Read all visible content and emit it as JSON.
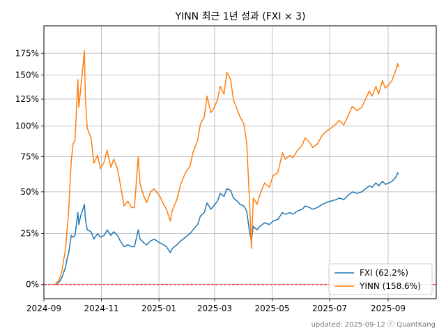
{
  "chart_data": {
    "type": "line",
    "title": "YINN 최근 1년 성과 (FXI × 3)",
    "xlabel": "",
    "ylabel": "",
    "footer": "updated: 2025-09-12 ⓒ QuantKang",
    "grid": true,
    "legend_position": "bottom-right",
    "y_scale": "log1p",
    "xlim": [
      "2024-09-01",
      "2025-10-22"
    ],
    "ylim": [
      -0.06,
      2.1
    ],
    "x_ticks": [
      {
        "date": "2024-09-01",
        "label": "2024-09"
      },
      {
        "date": "2024-11-01",
        "label": "2024-11"
      },
      {
        "date": "2025-01-01",
        "label": "2025-01"
      },
      {
        "date": "2025-03-01",
        "label": "2025-03"
      },
      {
        "date": "2025-05-01",
        "label": "2025-05"
      },
      {
        "date": "2025-07-01",
        "label": "2025-07"
      },
      {
        "date": "2025-09-01",
        "label": "2025-09"
      }
    ],
    "y_ticks": [
      {
        "value": 0.0,
        "label": "0%"
      },
      {
        "value": 0.25,
        "label": "25%"
      },
      {
        "value": 0.5,
        "label": "50%"
      },
      {
        "value": 0.75,
        "label": "75%"
      },
      {
        "value": 1.0,
        "label": "100%"
      },
      {
        "value": 1.25,
        "label": "125%"
      },
      {
        "value": 1.5,
        "label": "150%"
      },
      {
        "value": 1.75,
        "label": "175%"
      }
    ],
    "reference_line": {
      "value": 0.0,
      "color": "#ff0000",
      "style": "dashed"
    },
    "series": [
      {
        "name": "FXI (62.2%)",
        "color": "#1f77b4",
        "points": [
          [
            "2024-09-13",
            0.0
          ],
          [
            "2024-09-17",
            0.01
          ],
          [
            "2024-09-20",
            0.03
          ],
          [
            "2024-09-24",
            0.08
          ],
          [
            "2024-09-26",
            0.13
          ],
          [
            "2024-09-27",
            0.14
          ],
          [
            "2024-09-30",
            0.24
          ],
          [
            "2024-10-02",
            0.23
          ],
          [
            "2024-10-04",
            0.24
          ],
          [
            "2024-10-07",
            0.37
          ],
          [
            "2024-10-08",
            0.3
          ],
          [
            "2024-10-10",
            0.35
          ],
          [
            "2024-10-14",
            0.42
          ],
          [
            "2024-10-15",
            0.33
          ],
          [
            "2024-10-17",
            0.27
          ],
          [
            "2024-10-21",
            0.26
          ],
          [
            "2024-10-24",
            0.22
          ],
          [
            "2024-10-28",
            0.25
          ],
          [
            "2024-10-31",
            0.23
          ],
          [
            "2024-11-04",
            0.24
          ],
          [
            "2024-11-07",
            0.27
          ],
          [
            "2024-11-11",
            0.24
          ],
          [
            "2024-11-14",
            0.26
          ],
          [
            "2024-11-18",
            0.24
          ],
          [
            "2024-11-21",
            0.21
          ],
          [
            "2024-11-25",
            0.18
          ],
          [
            "2024-11-29",
            0.19
          ],
          [
            "2024-12-03",
            0.18
          ],
          [
            "2024-12-06",
            0.18
          ],
          [
            "2024-12-10",
            0.27
          ],
          [
            "2024-12-12",
            0.22
          ],
          [
            "2024-12-16",
            0.2
          ],
          [
            "2024-12-19",
            0.19
          ],
          [
            "2024-12-23",
            0.21
          ],
          [
            "2024-12-27",
            0.22
          ],
          [
            "2025-01-02",
            0.2
          ],
          [
            "2025-01-06",
            0.19
          ],
          [
            "2025-01-09",
            0.18
          ],
          [
            "2025-01-13",
            0.15
          ],
          [
            "2025-01-15",
            0.17
          ],
          [
            "2025-01-20",
            0.19
          ],
          [
            "2025-01-24",
            0.21
          ],
          [
            "2025-01-29",
            0.23
          ],
          [
            "2025-02-03",
            0.25
          ],
          [
            "2025-02-06",
            0.27
          ],
          [
            "2025-02-11",
            0.3
          ],
          [
            "2025-02-14",
            0.35
          ],
          [
            "2025-02-18",
            0.37
          ],
          [
            "2025-02-21",
            0.43
          ],
          [
            "2025-02-25",
            0.39
          ],
          [
            "2025-02-28",
            0.41
          ],
          [
            "2025-03-04",
            0.44
          ],
          [
            "2025-03-07",
            0.49
          ],
          [
            "2025-03-11",
            0.47
          ],
          [
            "2025-03-14",
            0.52
          ],
          [
            "2025-03-18",
            0.51
          ],
          [
            "2025-03-21",
            0.46
          ],
          [
            "2025-03-25",
            0.44
          ],
          [
            "2025-03-28",
            0.42
          ],
          [
            "2025-04-01",
            0.41
          ],
          [
            "2025-04-04",
            0.38
          ],
          [
            "2025-04-07",
            0.26
          ],
          [
            "2025-04-09",
            0.21
          ],
          [
            "2025-04-11",
            0.29
          ],
          [
            "2025-04-15",
            0.27
          ],
          [
            "2025-04-18",
            0.29
          ],
          [
            "2025-04-23",
            0.31
          ],
          [
            "2025-04-28",
            0.3
          ],
          [
            "2025-05-02",
            0.32
          ],
          [
            "2025-05-07",
            0.33
          ],
          [
            "2025-05-12",
            0.37
          ],
          [
            "2025-05-15",
            0.36
          ],
          [
            "2025-05-20",
            0.37
          ],
          [
            "2025-05-23",
            0.36
          ],
          [
            "2025-05-28",
            0.38
          ],
          [
            "2025-06-02",
            0.39
          ],
          [
            "2025-06-05",
            0.41
          ],
          [
            "2025-06-10",
            0.4
          ],
          [
            "2025-06-13",
            0.39
          ],
          [
            "2025-06-18",
            0.4
          ],
          [
            "2025-06-23",
            0.42
          ],
          [
            "2025-06-27",
            0.43
          ],
          [
            "2025-07-02",
            0.44
          ],
          [
            "2025-07-08",
            0.45
          ],
          [
            "2025-07-11",
            0.46
          ],
          [
            "2025-07-16",
            0.45
          ],
          [
            "2025-07-21",
            0.48
          ],
          [
            "2025-07-25",
            0.5
          ],
          [
            "2025-07-30",
            0.49
          ],
          [
            "2025-08-04",
            0.5
          ],
          [
            "2025-08-08",
            0.52
          ],
          [
            "2025-08-12",
            0.54
          ],
          [
            "2025-08-15",
            0.53
          ],
          [
            "2025-08-19",
            0.56
          ],
          [
            "2025-08-22",
            0.54
          ],
          [
            "2025-08-26",
            0.57
          ],
          [
            "2025-08-29",
            0.55
          ],
          [
            "2025-09-02",
            0.56
          ],
          [
            "2025-09-05",
            0.57
          ],
          [
            "2025-09-08",
            0.59
          ],
          [
            "2025-09-10",
            0.61
          ],
          [
            "2025-09-11",
            0.63
          ],
          [
            "2025-09-12",
            0.622
          ]
        ]
      },
      {
        "name": "YINN (158.6%)",
        "color": "#ff7f0e",
        "points": [
          [
            "2024-09-13",
            0.0
          ],
          [
            "2024-09-17",
            0.02
          ],
          [
            "2024-09-20",
            0.06
          ],
          [
            "2024-09-24",
            0.17
          ],
          [
            "2024-09-26",
            0.3
          ],
          [
            "2024-09-27",
            0.36
          ],
          [
            "2024-09-30",
            0.72
          ],
          [
            "2024-10-02",
            0.85
          ],
          [
            "2024-10-04",
            0.88
          ],
          [
            "2024-10-07",
            1.45
          ],
          [
            "2024-10-08",
            1.17
          ],
          [
            "2024-10-10",
            1.35
          ],
          [
            "2024-10-14",
            1.78
          ],
          [
            "2024-10-15",
            1.25
          ],
          [
            "2024-10-17",
            0.98
          ],
          [
            "2024-10-21",
            0.9
          ],
          [
            "2024-10-24",
            0.7
          ],
          [
            "2024-10-28",
            0.76
          ],
          [
            "2024-10-31",
            0.66
          ],
          [
            "2024-11-04",
            0.71
          ],
          [
            "2024-11-07",
            0.8
          ],
          [
            "2024-11-11",
            0.67
          ],
          [
            "2024-11-14",
            0.73
          ],
          [
            "2024-11-18",
            0.66
          ],
          [
            "2024-11-21",
            0.55
          ],
          [
            "2024-11-25",
            0.41
          ],
          [
            "2024-11-29",
            0.44
          ],
          [
            "2024-12-03",
            0.4
          ],
          [
            "2024-12-06",
            0.4
          ],
          [
            "2024-12-10",
            0.75
          ],
          [
            "2024-12-12",
            0.55
          ],
          [
            "2024-12-16",
            0.47
          ],
          [
            "2024-12-19",
            0.43
          ],
          [
            "2024-12-23",
            0.5
          ],
          [
            "2024-12-27",
            0.52
          ],
          [
            "2025-01-02",
            0.47
          ],
          [
            "2025-01-06",
            0.42
          ],
          [
            "2025-01-09",
            0.39
          ],
          [
            "2025-01-13",
            0.32
          ],
          [
            "2025-01-15",
            0.38
          ],
          [
            "2025-01-20",
            0.45
          ],
          [
            "2025-01-24",
            0.55
          ],
          [
            "2025-01-29",
            0.63
          ],
          [
            "2025-02-03",
            0.68
          ],
          [
            "2025-02-06",
            0.78
          ],
          [
            "2025-02-11",
            0.88
          ],
          [
            "2025-02-14",
            1.02
          ],
          [
            "2025-02-18",
            1.08
          ],
          [
            "2025-02-21",
            1.28
          ],
          [
            "2025-02-25",
            1.12
          ],
          [
            "2025-02-28",
            1.16
          ],
          [
            "2025-03-04",
            1.24
          ],
          [
            "2025-03-07",
            1.38
          ],
          [
            "2025-03-11",
            1.3
          ],
          [
            "2025-03-14",
            1.53
          ],
          [
            "2025-03-18",
            1.45
          ],
          [
            "2025-03-21",
            1.24
          ],
          [
            "2025-03-25",
            1.15
          ],
          [
            "2025-03-28",
            1.08
          ],
          [
            "2025-04-01",
            1.02
          ],
          [
            "2025-04-04",
            0.86
          ],
          [
            "2025-04-07",
            0.45
          ],
          [
            "2025-04-09",
            0.17
          ],
          [
            "2025-04-11",
            0.46
          ],
          [
            "2025-04-15",
            0.42
          ],
          [
            "2025-04-18",
            0.48
          ],
          [
            "2025-04-23",
            0.56
          ],
          [
            "2025-04-28",
            0.53
          ],
          [
            "2025-05-02",
            0.61
          ],
          [
            "2025-05-07",
            0.63
          ],
          [
            "2025-05-12",
            0.78
          ],
          [
            "2025-05-15",
            0.73
          ],
          [
            "2025-05-20",
            0.76
          ],
          [
            "2025-05-23",
            0.74
          ],
          [
            "2025-05-28",
            0.8
          ],
          [
            "2025-06-02",
            0.84
          ],
          [
            "2025-06-05",
            0.9
          ],
          [
            "2025-06-10",
            0.86
          ],
          [
            "2025-06-13",
            0.82
          ],
          [
            "2025-06-18",
            0.85
          ],
          [
            "2025-06-23",
            0.92
          ],
          [
            "2025-06-27",
            0.95
          ],
          [
            "2025-07-02",
            0.98
          ],
          [
            "2025-07-08",
            1.02
          ],
          [
            "2025-07-11",
            1.05
          ],
          [
            "2025-07-16",
            1.01
          ],
          [
            "2025-07-21",
            1.1
          ],
          [
            "2025-07-25",
            1.18
          ],
          [
            "2025-07-30",
            1.14
          ],
          [
            "2025-08-04",
            1.17
          ],
          [
            "2025-08-08",
            1.25
          ],
          [
            "2025-08-12",
            1.33
          ],
          [
            "2025-08-15",
            1.28
          ],
          [
            "2025-08-19",
            1.38
          ],
          [
            "2025-08-22",
            1.3
          ],
          [
            "2025-08-26",
            1.44
          ],
          [
            "2025-08-29",
            1.36
          ],
          [
            "2025-09-02",
            1.4
          ],
          [
            "2025-09-05",
            1.44
          ],
          [
            "2025-09-08",
            1.52
          ],
          [
            "2025-09-10",
            1.58
          ],
          [
            "2025-09-11",
            1.63
          ],
          [
            "2025-09-12",
            1.586
          ]
        ]
      }
    ]
  }
}
